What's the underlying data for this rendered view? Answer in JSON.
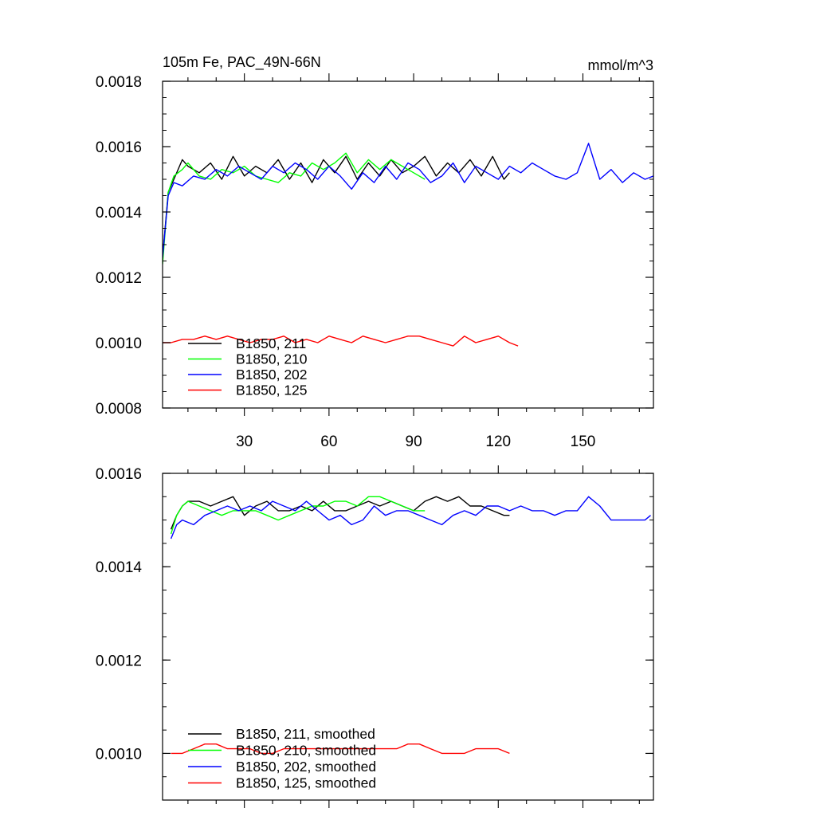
{
  "chart_data": [
    {
      "type": "line",
      "title": "105m Fe, PAC_49N-66N",
      "units": "mmol/m^3",
      "xlim": [
        1,
        175
      ],
      "ylim": [
        0.0008,
        0.0018
      ],
      "x_ticks": [
        30,
        60,
        90,
        120,
        150
      ],
      "x_tick_labels": [
        "30",
        "60",
        "90",
        "120",
        "150"
      ],
      "y_ticks": [
        0.0008,
        0.001,
        0.0012,
        0.0014,
        0.0016,
        0.0018
      ],
      "y_tick_labels": [
        "0.0008",
        "0.0010",
        "0.0012",
        "0.0014",
        "0.0016",
        "0.0018"
      ],
      "grid": false,
      "legend_position": "bottom-left",
      "series": [
        {
          "name": "B1850, 211",
          "color": "#000000",
          "x": [
            1,
            3,
            5,
            8,
            10,
            14,
            18,
            22,
            26,
            30,
            34,
            38,
            42,
            46,
            50,
            54,
            58,
            62,
            66,
            70,
            74,
            78,
            82,
            86,
            90,
            94,
            98,
            102,
            106,
            110,
            114,
            118,
            122,
            124
          ],
          "y": [
            0.00126,
            0.00146,
            0.0015,
            0.00156,
            0.00154,
            0.00152,
            0.00155,
            0.0015,
            0.00157,
            0.00151,
            0.00154,
            0.00152,
            0.00156,
            0.0015,
            0.00155,
            0.00149,
            0.00156,
            0.00152,
            0.00157,
            0.0015,
            0.00155,
            0.00151,
            0.00156,
            0.00152,
            0.00154,
            0.00157,
            0.00151,
            0.00155,
            0.00152,
            0.00156,
            0.00151,
            0.00157,
            0.0015,
            0.00152
          ]
        },
        {
          "name": "B1850, 210",
          "color": "#00ff00",
          "x": [
            1,
            3,
            5,
            8,
            10,
            14,
            18,
            22,
            26,
            30,
            34,
            38,
            42,
            46,
            50,
            54,
            58,
            62,
            66,
            70,
            74,
            78,
            82,
            86,
            90,
            94
          ],
          "y": [
            0.00124,
            0.00146,
            0.00151,
            0.00153,
            0.00155,
            0.00151,
            0.0015,
            0.00153,
            0.00152,
            0.00154,
            0.00151,
            0.0015,
            0.00149,
            0.00152,
            0.00151,
            0.00155,
            0.00153,
            0.00155,
            0.00158,
            0.00152,
            0.00156,
            0.00153,
            0.00156,
            0.00154,
            0.00152,
            0.0015
          ]
        },
        {
          "name": "B1850, 202",
          "color": "#0000ff",
          "x": [
            1,
            3,
            5,
            8,
            12,
            16,
            20,
            24,
            28,
            32,
            36,
            40,
            44,
            48,
            52,
            56,
            60,
            64,
            68,
            72,
            76,
            80,
            84,
            88,
            92,
            96,
            100,
            104,
            108,
            112,
            116,
            120,
            124,
            128,
            132,
            136,
            140,
            144,
            148,
            152,
            156,
            160,
            164,
            168,
            172,
            175
          ],
          "y": [
            0.00126,
            0.00145,
            0.00149,
            0.00148,
            0.00151,
            0.0015,
            0.00153,
            0.00151,
            0.00154,
            0.00152,
            0.0015,
            0.00154,
            0.00152,
            0.00155,
            0.00153,
            0.0015,
            0.00154,
            0.00151,
            0.00147,
            0.00152,
            0.00149,
            0.00154,
            0.0015,
            0.00155,
            0.00153,
            0.00149,
            0.00151,
            0.00155,
            0.00149,
            0.00154,
            0.00152,
            0.0015,
            0.00154,
            0.00152,
            0.00155,
            0.00153,
            0.00151,
            0.0015,
            0.00152,
            0.00161,
            0.0015,
            0.00153,
            0.00149,
            0.00152,
            0.0015,
            0.00151
          ]
        },
        {
          "name": "B1850, 125",
          "color": "#ff0000",
          "x": [
            1,
            4,
            8,
            12,
            16,
            20,
            24,
            28,
            32,
            36,
            40,
            44,
            48,
            52,
            56,
            60,
            64,
            68,
            72,
            76,
            80,
            84,
            88,
            92,
            96,
            100,
            104,
            108,
            112,
            116,
            120,
            124,
            127
          ],
          "y": [
            0.001,
            0.001,
            0.00101,
            0.00101,
            0.00102,
            0.00101,
            0.00102,
            0.00101,
            0.001,
            0.00101,
            0.00101,
            0.00102,
            0.001,
            0.00101,
            0.001,
            0.00102,
            0.00101,
            0.001,
            0.00102,
            0.00101,
            0.001,
            0.00101,
            0.00102,
            0.00102,
            0.00101,
            0.001,
            0.00099,
            0.00102,
            0.001,
            0.00101,
            0.00102,
            0.001,
            0.00099
          ]
        }
      ]
    },
    {
      "type": "line",
      "xlim": [
        1,
        175
      ],
      "ylim": [
        0.0009,
        0.0016
      ],
      "y_ticks": [
        0.001,
        0.0012,
        0.0014,
        0.0016
      ],
      "y_tick_labels": [
        "0.0010",
        "0.0012",
        "0.0014",
        "0.0016"
      ],
      "grid": false,
      "legend_position": "bottom-left",
      "series": [
        {
          "name": "B1850, 211, smoothed",
          "color": "#000000",
          "x": [
            4,
            6,
            8,
            10,
            14,
            18,
            22,
            26,
            30,
            34,
            38,
            42,
            46,
            50,
            54,
            58,
            62,
            66,
            70,
            74,
            78,
            82,
            86,
            90,
            94,
            98,
            102,
            106,
            110,
            114,
            118,
            122,
            124
          ],
          "y": [
            0.00148,
            0.00151,
            0.00153,
            0.00154,
            0.00154,
            0.00153,
            0.00154,
            0.00155,
            0.00151,
            0.00153,
            0.00154,
            0.00152,
            0.00152,
            0.00153,
            0.00152,
            0.00154,
            0.00152,
            0.00152,
            0.00153,
            0.00154,
            0.00153,
            0.00154,
            0.00153,
            0.00152,
            0.00154,
            0.00155,
            0.00154,
            0.00155,
            0.00153,
            0.00153,
            0.00152,
            0.00151,
            0.00151
          ]
        },
        {
          "name": "B1850, 210, smoothed",
          "color": "#00ff00",
          "x": [
            4,
            6,
            8,
            10,
            14,
            18,
            22,
            26,
            30,
            34,
            38,
            42,
            46,
            50,
            54,
            58,
            62,
            66,
            70,
            74,
            78,
            82,
            86,
            90,
            94
          ],
          "y": [
            0.00147,
            0.00151,
            0.00153,
            0.00154,
            0.00153,
            0.00152,
            0.00151,
            0.00152,
            0.00152,
            0.00152,
            0.00151,
            0.0015,
            0.00151,
            0.00152,
            0.00153,
            0.00153,
            0.00154,
            0.00154,
            0.00153,
            0.00155,
            0.00155,
            0.00154,
            0.00153,
            0.00152,
            0.00152
          ]
        },
        {
          "name": "B1850, 202, smoothed",
          "color": "#0000ff",
          "x": [
            4,
            6,
            8,
            12,
            16,
            20,
            24,
            28,
            32,
            36,
            40,
            44,
            48,
            52,
            56,
            60,
            64,
            68,
            72,
            76,
            80,
            84,
            88,
            92,
            96,
            100,
            104,
            108,
            112,
            116,
            120,
            124,
            128,
            132,
            136,
            140,
            144,
            148,
            152,
            156,
            160,
            164,
            168,
            172,
            174
          ],
          "y": [
            0.00146,
            0.00149,
            0.0015,
            0.00149,
            0.00151,
            0.00152,
            0.00153,
            0.00152,
            0.00153,
            0.00152,
            0.00154,
            0.00153,
            0.00152,
            0.00154,
            0.00152,
            0.0015,
            0.00151,
            0.00149,
            0.0015,
            0.00153,
            0.00151,
            0.00152,
            0.00152,
            0.00151,
            0.0015,
            0.00149,
            0.00151,
            0.00152,
            0.00151,
            0.00153,
            0.00153,
            0.00152,
            0.00153,
            0.00152,
            0.00152,
            0.00151,
            0.00152,
            0.00152,
            0.00155,
            0.00153,
            0.0015,
            0.0015,
            0.0015,
            0.0015,
            0.00151
          ]
        },
        {
          "name": "B1850, 125, smoothed",
          "color": "#ff0000",
          "x": [
            4,
            8,
            12,
            16,
            20,
            24,
            28,
            32,
            36,
            40,
            44,
            48,
            52,
            56,
            60,
            64,
            68,
            72,
            76,
            80,
            84,
            88,
            92,
            96,
            100,
            104,
            108,
            112,
            116,
            120,
            124
          ],
          "y": [
            0.001,
            0.001,
            0.00101,
            0.00102,
            0.00102,
            0.00101,
            0.00101,
            0.00101,
            0.001,
            0.001,
            0.00101,
            0.00101,
            0.00101,
            0.00101,
            0.00101,
            0.00101,
            0.00101,
            0.00101,
            0.00101,
            0.00101,
            0.00101,
            0.00102,
            0.00102,
            0.00101,
            0.001,
            0.001,
            0.001,
            0.00101,
            0.00101,
            0.00101,
            0.001
          ]
        }
      ]
    }
  ]
}
